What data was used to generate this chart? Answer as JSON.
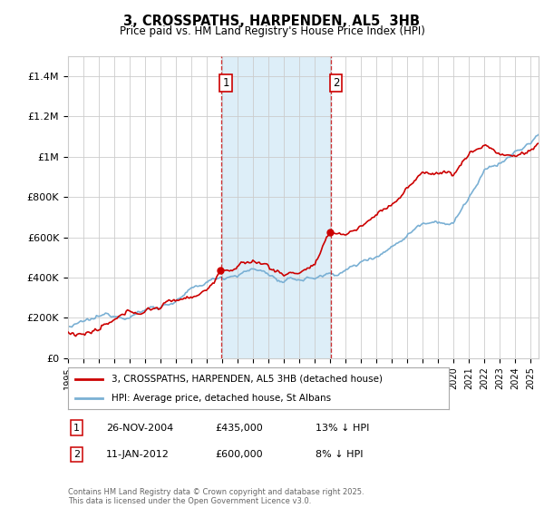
{
  "title": "3, CROSSPATHS, HARPENDEN, AL5  3HB",
  "subtitle": "Price paid vs. HM Land Registry's House Price Index (HPI)",
  "ylabel_ticks": [
    "£0",
    "£200K",
    "£400K",
    "£600K",
    "£800K",
    "£1M",
    "£1.2M",
    "£1.4M"
  ],
  "ytick_values": [
    0,
    200000,
    400000,
    600000,
    800000,
    1000000,
    1200000,
    1400000
  ],
  "ylim": [
    0,
    1500000
  ],
  "xlim_start": 1995.0,
  "xlim_end": 2025.5,
  "sale1_date": 2004.91,
  "sale1_price": 435000,
  "sale1_label": "1",
  "sale2_date": 2012.04,
  "sale2_price": 600000,
  "sale2_label": "2",
  "shade_start1": 2004.91,
  "shade_end1": 2012.04,
  "legend_line1": "3, CROSSPATHS, HARPENDEN, AL5 3HB (detached house)",
  "legend_line2": "HPI: Average price, detached house, St Albans",
  "note1_label": "1",
  "note1_date": "26-NOV-2004",
  "note1_price": "£435,000",
  "note1_hpi": "13% ↓ HPI",
  "note2_label": "2",
  "note2_date": "11-JAN-2012",
  "note2_price": "£600,000",
  "note2_hpi": "8% ↓ HPI",
  "footer": "Contains HM Land Registry data © Crown copyright and database right 2025.\nThis data is licensed under the Open Government Licence v3.0.",
  "hpi_color": "#7ab0d4",
  "price_color": "#cc0000",
  "shade_color": "#ddeef8",
  "background_color": "#ffffff",
  "grid_color": "#cccccc"
}
